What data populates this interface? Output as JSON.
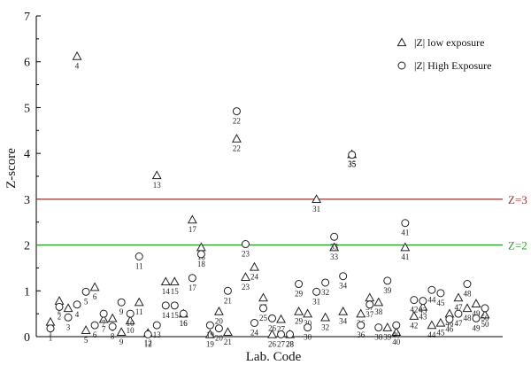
{
  "chart_data": {
    "type": "scatter",
    "xlabel": "Lab. Code",
    "ylabel": "Z-score",
    "ylim": [
      0,
      7
    ],
    "yticks": [
      0,
      1,
      2,
      3,
      4,
      5,
      6,
      7
    ],
    "reference_lines": [
      {
        "label": "Z=3",
        "y": 3,
        "color": "#a0302a"
      },
      {
        "label": "Z=2",
        "y": 2,
        "color": "#2e9a2e"
      }
    ],
    "legend": {
      "placement": "top-right",
      "entries": [
        "|Z| low exposure",
        "|Z| High Exposure"
      ]
    },
    "series": [
      {
        "name": "|Z| low exposure",
        "marker": "triangle",
        "points": [
          {
            "x": 1,
            "y": 0.32
          },
          {
            "x": 2,
            "y": 0.78
          },
          {
            "x": 3,
            "y": 0.62
          },
          {
            "x": 4,
            "y": 6.12
          },
          {
            "x": 5,
            "y": 0.14
          },
          {
            "x": 6,
            "y": 1.08
          },
          {
            "x": 7,
            "y": 0.38
          },
          {
            "x": 8,
            "y": 0.4
          },
          {
            "x": 9,
            "y": 0.1
          },
          {
            "x": 10,
            "y": 0.35
          },
          {
            "x": 11,
            "y": 0.75
          },
          {
            "x": 12,
            "y": 0.08
          },
          {
            "x": 13,
            "y": 3.52
          },
          {
            "x": 14,
            "y": 1.2
          },
          {
            "x": 15,
            "y": 1.2
          },
          {
            "x": 16,
            "y": 0.5
          },
          {
            "x": 17,
            "y": 2.55
          },
          {
            "x": 18,
            "y": 1.95
          },
          {
            "x": 19,
            "y": 0.05
          },
          {
            "x": 20,
            "y": 0.55
          },
          {
            "x": 21,
            "y": 0.1
          },
          {
            "x": 22,
            "y": 4.32
          },
          {
            "x": 23,
            "y": 1.3
          },
          {
            "x": 24,
            "y": 1.52
          },
          {
            "x": 25,
            "y": 0.85
          },
          {
            "x": 26,
            "y": 0.05
          },
          {
            "x": 27,
            "y": 0.38
          },
          {
            "x": 28,
            "y": 0.05
          },
          {
            "x": 29,
            "y": 0.55
          },
          {
            "x": 30,
            "y": 0.5
          },
          {
            "x": 31,
            "y": 3.0
          },
          {
            "x": 32,
            "y": 0.42
          },
          {
            "x": 33,
            "y": 1.95
          },
          {
            "x": 34,
            "y": 0.55
          },
          {
            "x": 35,
            "y": 3.98
          },
          {
            "x": 36,
            "y": 0.5
          },
          {
            "x": 37,
            "y": 0.85
          },
          {
            "x": 38,
            "y": 0.75
          },
          {
            "x": 39,
            "y": 0.2
          },
          {
            "x": 40,
            "y": 0.1
          },
          {
            "x": 41,
            "y": 1.95
          },
          {
            "x": 42,
            "y": 0.45
          },
          {
            "x": 43,
            "y": 0.65
          },
          {
            "x": 44,
            "y": 0.25
          },
          {
            "x": 45,
            "y": 0.3
          },
          {
            "x": 46,
            "y": 0.5
          },
          {
            "x": 47,
            "y": 0.85
          },
          {
            "x": 48,
            "y": 0.62
          },
          {
            "x": 49,
            "y": 0.72
          },
          {
            "x": 50,
            "y": 0.48
          }
        ]
      },
      {
        "name": "|Z| High Exposure",
        "marker": "circle",
        "points": [
          {
            "x": 1,
            "y": 0.18
          },
          {
            "x": 2,
            "y": 0.65
          },
          {
            "x": 3,
            "y": 0.42
          },
          {
            "x": 4,
            "y": 0.7
          },
          {
            "x": 5,
            "y": 0.98
          },
          {
            "x": 6,
            "y": 0.25
          },
          {
            "x": 7,
            "y": 0.5
          },
          {
            "x": 8,
            "y": 0.22
          },
          {
            "x": 9,
            "y": 0.75
          },
          {
            "x": 10,
            "y": 0.5
          },
          {
            "x": 11,
            "y": 1.75
          },
          {
            "x": 12,
            "y": 0.05
          },
          {
            "x": 13,
            "y": 0.25
          },
          {
            "x": 14,
            "y": 0.68
          },
          {
            "x": 15,
            "y": 0.68
          },
          {
            "x": 16,
            "y": 0.5
          },
          {
            "x": 17,
            "y": 1.28
          },
          {
            "x": 18,
            "y": 1.8
          },
          {
            "x": 19,
            "y": 0.25
          },
          {
            "x": 20,
            "y": 0.18
          },
          {
            "x": 21,
            "y": 1.0
          },
          {
            "x": 22,
            "y": 4.92
          },
          {
            "x": 23,
            "y": 2.02
          },
          {
            "x": 24,
            "y": 0.3
          },
          {
            "x": 25,
            "y": 0.62
          },
          {
            "x": 26,
            "y": 0.4
          },
          {
            "x": 27,
            "y": 0.05
          },
          {
            "x": 28,
            "y": 0.05
          },
          {
            "x": 29,
            "y": 1.15
          },
          {
            "x": 30,
            "y": 0.2
          },
          {
            "x": 31,
            "y": 0.98
          },
          {
            "x": 32,
            "y": 1.18
          },
          {
            "x": 33,
            "y": 2.18
          },
          {
            "x": 34,
            "y": 1.32
          },
          {
            "x": 35,
            "y": 3.97
          },
          {
            "x": 36,
            "y": 0.25
          },
          {
            "x": 37,
            "y": 0.7
          },
          {
            "x": 38,
            "y": 0.2
          },
          {
            "x": 39,
            "y": 1.22
          },
          {
            "x": 40,
            "y": 0.25
          },
          {
            "x": 41,
            "y": 2.48
          },
          {
            "x": 42,
            "y": 0.8
          },
          {
            "x": 43,
            "y": 0.78
          },
          {
            "x": 44,
            "y": 1.02
          },
          {
            "x": 45,
            "y": 0.95
          },
          {
            "x": 46,
            "y": 0.38
          },
          {
            "x": 47,
            "y": 0.5
          },
          {
            "x": 48,
            "y": 1.15
          },
          {
            "x": 49,
            "y": 0.4
          },
          {
            "x": 50,
            "y": 0.62
          }
        ]
      }
    ]
  }
}
